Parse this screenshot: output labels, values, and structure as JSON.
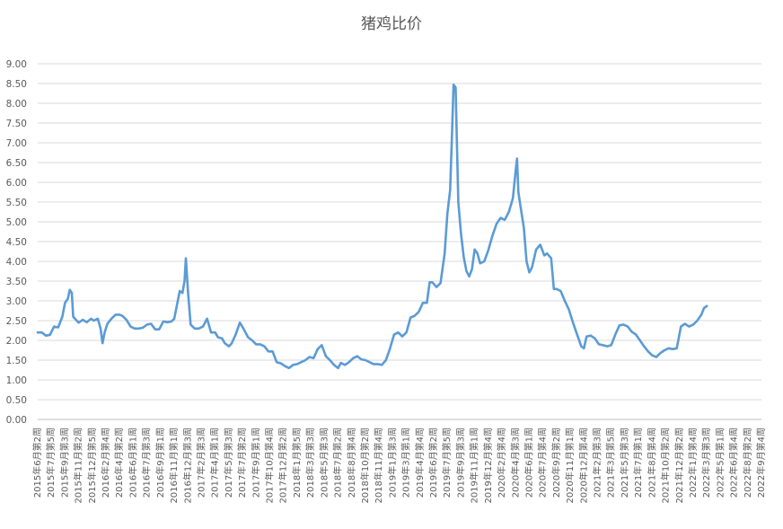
{
  "chart_data": {
    "type": "line",
    "title": "猪鸡比价",
    "xlabel": "",
    "ylabel": "",
    "ylim": [
      0,
      9
    ],
    "yticks": [
      "0.00",
      "0.50",
      "1.00",
      "1.50",
      "2.00",
      "2.50",
      "3.00",
      "3.50",
      "4.00",
      "4.50",
      "5.00",
      "5.50",
      "6.00",
      "6.50",
      "7.00",
      "7.50",
      "8.00",
      "8.50",
      "9.00"
    ],
    "grid": true,
    "legend": "none",
    "series_color": "#5B9BD5",
    "categories": [
      "2015年6月第2周",
      "2015年7月第5周",
      "2015年9月第3周",
      "2015年11月第2周",
      "2015年12月第5周",
      "2016年2月第4周",
      "2016年4月第2周",
      "2016年6月第1周",
      "2016年7月第3周",
      "2016年9月第1周",
      "2016年11月第1周",
      "2016年12月第3周",
      "2017年2月第3周",
      "2017年4月第1周",
      "2017年5月第3周",
      "2017年7月第2周",
      "2017年9月第1周",
      "2017年10月第4周",
      "2017年12月第2周",
      "2018年1月第5周",
      "2018年3月第3周",
      "2018年5月第3周",
      "2018年7月第2周",
      "2018年8月第4周",
      "2018年10月第2周",
      "2018年11月第4周",
      "2019年1月第3周",
      "2019年3月第1周",
      "2019年4月第4周",
      "2019年6月第2周",
      "2019年7月第5周",
      "2019年9月第3周",
      "2019年11月第1周",
      "2019年12月第4周",
      "2020年2月第4周",
      "2020年4月第3周",
      "2020年6月第1周",
      "2020年7月第4周",
      "2020年9月第2周",
      "2020年11月第1周",
      "2020年12月第4周",
      "2021年2月第3周",
      "2021年3月第5周",
      "2021年5月第3周",
      "2021年7月第1周",
      "2021年8月第4周",
      "2021年10月第2周",
      "2021年12月第2周",
      "2022年1月第4周",
      "2022年3月第3周",
      "2022年5月第1周",
      "2022年6月第4周",
      "2022年8月第2周",
      "2022年9月第4周"
    ],
    "points": [
      [
        0,
        2.2
      ],
      [
        0.3,
        2.2
      ],
      [
        0.6,
        2.12
      ],
      [
        0.9,
        2.14
      ],
      [
        1.2,
        2.35
      ],
      [
        1.5,
        2.33
      ],
      [
        1.8,
        2.6
      ],
      [
        2.0,
        2.95
      ],
      [
        2.2,
        3.05
      ],
      [
        2.35,
        3.28
      ],
      [
        2.5,
        3.2
      ],
      [
        2.6,
        2.6
      ],
      [
        2.8,
        2.52
      ],
      [
        3.0,
        2.45
      ],
      [
        3.3,
        2.52
      ],
      [
        3.6,
        2.46
      ],
      [
        3.9,
        2.55
      ],
      [
        4.1,
        2.5
      ],
      [
        4.4,
        2.55
      ],
      [
        4.6,
        2.3
      ],
      [
        4.75,
        1.93
      ],
      [
        4.9,
        2.2
      ],
      [
        5.1,
        2.42
      ],
      [
        5.4,
        2.55
      ],
      [
        5.7,
        2.65
      ],
      [
        6.0,
        2.65
      ],
      [
        6.2,
        2.62
      ],
      [
        6.5,
        2.52
      ],
      [
        6.8,
        2.35
      ],
      [
        7.1,
        2.3
      ],
      [
        7.4,
        2.3
      ],
      [
        7.7,
        2.32
      ],
      [
        8.0,
        2.4
      ],
      [
        8.3,
        2.42
      ],
      [
        8.6,
        2.28
      ],
      [
        8.9,
        2.28
      ],
      [
        9.2,
        2.48
      ],
      [
        9.5,
        2.46
      ],
      [
        9.8,
        2.48
      ],
      [
        10.0,
        2.55
      ],
      [
        10.2,
        2.9
      ],
      [
        10.4,
        3.25
      ],
      [
        10.6,
        3.2
      ],
      [
        10.75,
        3.5
      ],
      [
        10.85,
        4.08
      ],
      [
        11.0,
        3.25
      ],
      [
        11.2,
        2.4
      ],
      [
        11.5,
        2.3
      ],
      [
        11.8,
        2.3
      ],
      [
        12.1,
        2.35
      ],
      [
        12.4,
        2.55
      ],
      [
        12.7,
        2.2
      ],
      [
        13.0,
        2.2
      ],
      [
        13.2,
        2.08
      ],
      [
        13.5,
        2.05
      ],
      [
        13.7,
        1.93
      ],
      [
        14.0,
        1.85
      ],
      [
        14.2,
        1.92
      ],
      [
        14.5,
        2.15
      ],
      [
        14.8,
        2.45
      ],
      [
        15.1,
        2.28
      ],
      [
        15.4,
        2.08
      ],
      [
        15.7,
        2.0
      ],
      [
        16.0,
        1.9
      ],
      [
        16.3,
        1.9
      ],
      [
        16.6,
        1.85
      ],
      [
        16.9,
        1.72
      ],
      [
        17.2,
        1.72
      ],
      [
        17.5,
        1.45
      ],
      [
        17.8,
        1.42
      ],
      [
        18.1,
        1.35
      ],
      [
        18.4,
        1.3
      ],
      [
        18.7,
        1.38
      ],
      [
        19.0,
        1.4
      ],
      [
        19.3,
        1.45
      ],
      [
        19.6,
        1.5
      ],
      [
        19.9,
        1.58
      ],
      [
        20.2,
        1.55
      ],
      [
        20.5,
        1.78
      ],
      [
        20.8,
        1.88
      ],
      [
        21.1,
        1.6
      ],
      [
        21.4,
        1.5
      ],
      [
        21.7,
        1.38
      ],
      [
        22.0,
        1.3
      ],
      [
        22.2,
        1.43
      ],
      [
        22.5,
        1.38
      ],
      [
        22.8,
        1.45
      ],
      [
        23.1,
        1.55
      ],
      [
        23.4,
        1.6
      ],
      [
        23.7,
        1.52
      ],
      [
        24.0,
        1.5
      ],
      [
        24.3,
        1.45
      ],
      [
        24.6,
        1.4
      ],
      [
        24.9,
        1.4
      ],
      [
        25.2,
        1.38
      ],
      [
        25.5,
        1.5
      ],
      [
        25.8,
        1.8
      ],
      [
        26.1,
        2.15
      ],
      [
        26.4,
        2.2
      ],
      [
        26.7,
        2.1
      ],
      [
        27.0,
        2.2
      ],
      [
        27.3,
        2.58
      ],
      [
        27.6,
        2.62
      ],
      [
        27.9,
        2.72
      ],
      [
        28.2,
        2.95
      ],
      [
        28.5,
        2.95
      ],
      [
        28.7,
        3.47
      ],
      [
        28.9,
        3.47
      ],
      [
        29.2,
        3.35
      ],
      [
        29.5,
        3.45
      ],
      [
        29.8,
        4.2
      ],
      [
        30.0,
        5.2
      ],
      [
        30.2,
        5.8
      ],
      [
        30.35,
        7.3
      ],
      [
        30.45,
        8.47
      ],
      [
        30.6,
        8.4
      ],
      [
        30.8,
        5.5
      ],
      [
        31.0,
        4.7
      ],
      [
        31.2,
        4.1
      ],
      [
        31.4,
        3.75
      ],
      [
        31.6,
        3.62
      ],
      [
        31.8,
        3.8
      ],
      [
        32.0,
        4.3
      ],
      [
        32.2,
        4.2
      ],
      [
        32.4,
        3.95
      ],
      [
        32.7,
        4.0
      ],
      [
        33.0,
        4.28
      ],
      [
        33.3,
        4.65
      ],
      [
        33.6,
        4.95
      ],
      [
        33.9,
        5.1
      ],
      [
        34.2,
        5.05
      ],
      [
        34.5,
        5.25
      ],
      [
        34.8,
        5.6
      ],
      [
        35.0,
        6.3
      ],
      [
        35.1,
        6.6
      ],
      [
        35.2,
        5.75
      ],
      [
        35.4,
        5.3
      ],
      [
        35.6,
        4.85
      ],
      [
        35.8,
        4.0
      ],
      [
        36.0,
        3.72
      ],
      [
        36.2,
        3.85
      ],
      [
        36.5,
        4.3
      ],
      [
        36.8,
        4.42
      ],
      [
        37.1,
        4.15
      ],
      [
        37.3,
        4.2
      ],
      [
        37.6,
        4.08
      ],
      [
        37.8,
        3.3
      ],
      [
        38.0,
        3.3
      ],
      [
        38.3,
        3.25
      ],
      [
        38.6,
        3.0
      ],
      [
        38.9,
        2.78
      ],
      [
        39.2,
        2.45
      ],
      [
        39.5,
        2.15
      ],
      [
        39.8,
        1.85
      ],
      [
        40.0,
        1.8
      ],
      [
        40.2,
        2.1
      ],
      [
        40.5,
        2.12
      ],
      [
        40.8,
        2.05
      ],
      [
        41.1,
        1.9
      ],
      [
        41.4,
        1.88
      ],
      [
        41.7,
        1.85
      ],
      [
        42.0,
        1.88
      ],
      [
        42.3,
        2.15
      ],
      [
        42.6,
        2.38
      ],
      [
        42.9,
        2.4
      ],
      [
        43.2,
        2.35
      ],
      [
        43.5,
        2.22
      ],
      [
        43.8,
        2.15
      ],
      [
        44.1,
        2.0
      ],
      [
        44.4,
        1.85
      ],
      [
        44.7,
        1.72
      ],
      [
        45.0,
        1.62
      ],
      [
        45.3,
        1.58
      ],
      [
        45.6,
        1.68
      ],
      [
        45.9,
        1.75
      ],
      [
        46.2,
        1.8
      ],
      [
        46.5,
        1.78
      ],
      [
        46.8,
        1.8
      ],
      [
        47.1,
        2.35
      ],
      [
        47.4,
        2.42
      ],
      [
        47.7,
        2.35
      ],
      [
        48.0,
        2.4
      ],
      [
        48.3,
        2.5
      ],
      [
        48.6,
        2.65
      ],
      [
        48.8,
        2.82
      ],
      [
        49.0,
        2.87
      ]
    ]
  }
}
